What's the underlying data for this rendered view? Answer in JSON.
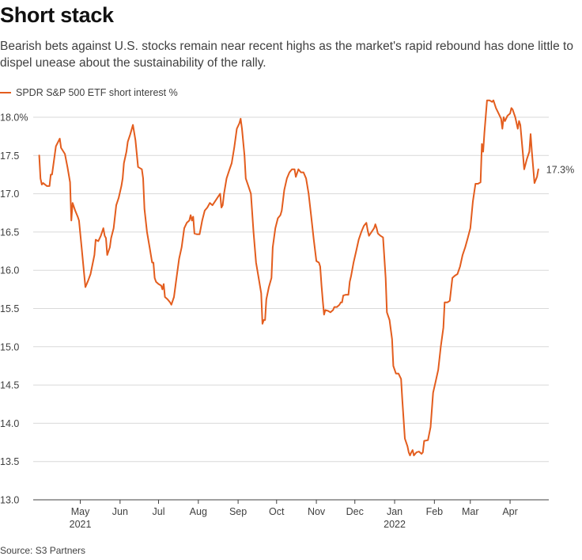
{
  "title": "Short stack",
  "subtitle": "Bearish bets against U.S. stocks remain near recent highs as the market's rapid rebound has done little to dispel unease about the sustainability of the rally.",
  "source": "Source: S3 Partners",
  "colors": {
    "line": "#e35d1e",
    "grid": "#d9d9d9",
    "axis": "#404040",
    "text": "#404040"
  },
  "chart_data": {
    "type": "line",
    "series": [
      {
        "name": "SPDR S&P 500 ETF short interest %",
        "color": "#e35d1e",
        "last_label": "17.3%",
        "points": [
          [
            "2021-03-30",
            17.5
          ],
          [
            "2021-03-31",
            17.2
          ],
          [
            "2021-04-01",
            17.12
          ],
          [
            "2021-04-02",
            17.14
          ],
          [
            "2021-04-05",
            17.1
          ],
          [
            "2021-04-07",
            17.1
          ],
          [
            "2021-04-08",
            17.25
          ],
          [
            "2021-04-09",
            17.25
          ],
          [
            "2021-04-12",
            17.62
          ],
          [
            "2021-04-15",
            17.72
          ],
          [
            "2021-04-16",
            17.6
          ],
          [
            "2021-04-19",
            17.52
          ],
          [
            "2021-04-21",
            17.35
          ],
          [
            "2021-04-23",
            17.15
          ],
          [
            "2021-04-24",
            16.65
          ],
          [
            "2021-04-25",
            16.88
          ],
          [
            "2021-04-27",
            16.78
          ],
          [
            "2021-04-29",
            16.7
          ],
          [
            "2021-04-30",
            16.65
          ],
          [
            "2021-05-02",
            16.3
          ],
          [
            "2021-05-04",
            15.95
          ],
          [
            "2021-05-05",
            15.78
          ],
          [
            "2021-05-07",
            15.86
          ],
          [
            "2021-05-09",
            15.95
          ],
          [
            "2021-05-12",
            16.2
          ],
          [
            "2021-05-13",
            16.4
          ],
          [
            "2021-05-15",
            16.38
          ],
          [
            "2021-05-17",
            16.45
          ],
          [
            "2021-05-19",
            16.55
          ],
          [
            "2021-05-20",
            16.45
          ],
          [
            "2021-05-21",
            16.42
          ],
          [
            "2021-05-22",
            16.2
          ],
          [
            "2021-05-24",
            16.3
          ],
          [
            "2021-05-25",
            16.42
          ],
          [
            "2021-05-27",
            16.55
          ],
          [
            "2021-05-29",
            16.85
          ],
          [
            "2021-05-31",
            16.95
          ],
          [
            "2021-06-02",
            17.1
          ],
          [
            "2021-06-03",
            17.2
          ],
          [
            "2021-06-04",
            17.4
          ],
          [
            "2021-06-06",
            17.55
          ],
          [
            "2021-06-07",
            17.68
          ],
          [
            "2021-06-09",
            17.78
          ],
          [
            "2021-06-11",
            17.9
          ],
          [
            "2021-06-13",
            17.7
          ],
          [
            "2021-06-15",
            17.35
          ],
          [
            "2021-06-18",
            17.32
          ],
          [
            "2021-06-19",
            17.2
          ],
          [
            "2021-06-20",
            16.8
          ],
          [
            "2021-06-22",
            16.5
          ],
          [
            "2021-06-24",
            16.3
          ],
          [
            "2021-06-26",
            16.1
          ],
          [
            "2021-06-27",
            16.1
          ],
          [
            "2021-06-28",
            15.9
          ],
          [
            "2021-06-29",
            15.85
          ],
          [
            "2021-07-01",
            15.82
          ],
          [
            "2021-07-03",
            15.8
          ],
          [
            "2021-07-04",
            15.75
          ],
          [
            "2021-07-05",
            15.82
          ],
          [
            "2021-07-06",
            15.65
          ],
          [
            "2021-07-08",
            15.62
          ],
          [
            "2021-07-10",
            15.58
          ],
          [
            "2021-07-11",
            15.55
          ],
          [
            "2021-07-13",
            15.65
          ],
          [
            "2021-07-15",
            15.9
          ],
          [
            "2021-07-17",
            16.15
          ],
          [
            "2021-07-19",
            16.3
          ],
          [
            "2021-07-21",
            16.55
          ],
          [
            "2021-07-23",
            16.62
          ],
          [
            "2021-07-25",
            16.65
          ],
          [
            "2021-07-26",
            16.72
          ],
          [
            "2021-07-27",
            16.65
          ],
          [
            "2021-07-28",
            16.7
          ],
          [
            "2021-07-29",
            16.48
          ],
          [
            "2021-07-31",
            16.47
          ],
          [
            "2021-08-02",
            16.47
          ],
          [
            "2021-08-04",
            16.65
          ],
          [
            "2021-08-06",
            16.78
          ],
          [
            "2021-08-08",
            16.82
          ],
          [
            "2021-08-10",
            16.88
          ],
          [
            "2021-08-12",
            16.85
          ],
          [
            "2021-08-14",
            16.9
          ],
          [
            "2021-08-16",
            16.95
          ],
          [
            "2021-08-18",
            17.0
          ],
          [
            "2021-08-19",
            16.82
          ],
          [
            "2021-08-20",
            16.85
          ],
          [
            "2021-08-21",
            17.0
          ],
          [
            "2021-08-23",
            17.2
          ],
          [
            "2021-08-25",
            17.3
          ],
          [
            "2021-08-27",
            17.4
          ],
          [
            "2021-08-29",
            17.6
          ],
          [
            "2021-08-31",
            17.85
          ],
          [
            "2021-09-02",
            17.92
          ],
          [
            "2021-09-03",
            17.98
          ],
          [
            "2021-09-04",
            17.85
          ],
          [
            "2021-09-06",
            17.5
          ],
          [
            "2021-09-07",
            17.2
          ],
          [
            "2021-09-09",
            17.1
          ],
          [
            "2021-09-11",
            17.0
          ],
          [
            "2021-09-13",
            16.5
          ],
          [
            "2021-09-15",
            16.1
          ],
          [
            "2021-09-17",
            15.9
          ],
          [
            "2021-09-19",
            15.7
          ],
          [
            "2021-09-20",
            15.3
          ],
          [
            "2021-09-21",
            15.35
          ],
          [
            "2021-09-22",
            15.35
          ],
          [
            "2021-09-23",
            15.62
          ],
          [
            "2021-09-25",
            15.78
          ],
          [
            "2021-09-27",
            15.9
          ],
          [
            "2021-09-28",
            16.3
          ],
          [
            "2021-09-30",
            16.55
          ],
          [
            "2021-10-02",
            16.68
          ],
          [
            "2021-10-04",
            16.72
          ],
          [
            "2021-10-05",
            16.78
          ],
          [
            "2021-10-07",
            17.05
          ],
          [
            "2021-10-09",
            17.2
          ],
          [
            "2021-10-11",
            17.28
          ],
          [
            "2021-10-13",
            17.32
          ],
          [
            "2021-10-15",
            17.32
          ],
          [
            "2021-10-16",
            17.22
          ],
          [
            "2021-10-18",
            17.32
          ],
          [
            "2021-10-20",
            17.28
          ],
          [
            "2021-10-22",
            17.28
          ],
          [
            "2021-10-24",
            17.2
          ],
          [
            "2021-10-26",
            17.0
          ],
          [
            "2021-10-28",
            16.7
          ],
          [
            "2021-10-30",
            16.4
          ],
          [
            "2021-11-01",
            16.12
          ],
          [
            "2021-11-03",
            16.1
          ],
          [
            "2021-11-04",
            16.05
          ],
          [
            "2021-11-05",
            15.8
          ],
          [
            "2021-11-06",
            15.6
          ],
          [
            "2021-11-07",
            15.42
          ],
          [
            "2021-11-08",
            15.48
          ],
          [
            "2021-11-10",
            15.47
          ],
          [
            "2021-11-12",
            15.45
          ],
          [
            "2021-11-14",
            15.48
          ],
          [
            "2021-11-15",
            15.52
          ],
          [
            "2021-11-17",
            15.52
          ],
          [
            "2021-11-19",
            15.55
          ],
          [
            "2021-11-20",
            15.58
          ],
          [
            "2021-11-21",
            15.58
          ],
          [
            "2021-11-22",
            15.67
          ],
          [
            "2021-11-24",
            15.68
          ],
          [
            "2021-11-26",
            15.68
          ],
          [
            "2021-11-27",
            15.85
          ],
          [
            "2021-11-28",
            15.92
          ],
          [
            "2021-11-30",
            16.1
          ],
          [
            "2021-12-02",
            16.25
          ],
          [
            "2021-12-04",
            16.4
          ],
          [
            "2021-12-06",
            16.5
          ],
          [
            "2021-12-08",
            16.58
          ],
          [
            "2021-12-10",
            16.62
          ],
          [
            "2021-12-11",
            16.52
          ],
          [
            "2021-12-12",
            16.45
          ],
          [
            "2021-12-14",
            16.5
          ],
          [
            "2021-12-16",
            16.55
          ],
          [
            "2021-12-17",
            16.6
          ],
          [
            "2021-12-18",
            16.55
          ],
          [
            "2021-12-19",
            16.48
          ],
          [
            "2021-12-21",
            16.45
          ],
          [
            "2021-12-23",
            16.43
          ],
          [
            "2021-12-25",
            15.9
          ],
          [
            "2021-12-26",
            15.45
          ],
          [
            "2021-12-28",
            15.35
          ],
          [
            "2021-12-30",
            15.1
          ],
          [
            "2021-12-31",
            14.75
          ],
          [
            "2022-01-02",
            14.65
          ],
          [
            "2022-01-04",
            14.65
          ],
          [
            "2022-01-06",
            14.58
          ],
          [
            "2022-01-07",
            14.3
          ],
          [
            "2022-01-09",
            13.8
          ],
          [
            "2022-01-11",
            13.7
          ],
          [
            "2022-01-12",
            13.62
          ],
          [
            "2022-01-13",
            13.58
          ],
          [
            "2022-01-14",
            13.62
          ],
          [
            "2022-01-15",
            13.65
          ],
          [
            "2022-01-16",
            13.58
          ],
          [
            "2022-01-18",
            13.62
          ],
          [
            "2022-01-20",
            13.63
          ],
          [
            "2022-01-22",
            13.6
          ],
          [
            "2022-01-23",
            13.62
          ],
          [
            "2022-01-24",
            13.77
          ],
          [
            "2022-01-27",
            13.78
          ],
          [
            "2022-01-29",
            13.95
          ],
          [
            "2022-01-31",
            14.4
          ],
          [
            "2022-02-02",
            14.55
          ],
          [
            "2022-02-04",
            14.7
          ],
          [
            "2022-02-06",
            15.0
          ],
          [
            "2022-02-08",
            15.25
          ],
          [
            "2022-02-09",
            15.58
          ],
          [
            "2022-02-11",
            15.58
          ],
          [
            "2022-02-13",
            15.6
          ],
          [
            "2022-02-15",
            15.9
          ],
          [
            "2022-02-17",
            15.93
          ],
          [
            "2022-02-19",
            15.95
          ],
          [
            "2022-02-21",
            16.05
          ],
          [
            "2022-02-23",
            16.2
          ],
          [
            "2022-02-25",
            16.3
          ],
          [
            "2022-02-27",
            16.42
          ],
          [
            "2022-03-01",
            16.55
          ],
          [
            "2022-03-03",
            16.9
          ],
          [
            "2022-03-05",
            17.13
          ],
          [
            "2022-03-07",
            17.13
          ],
          [
            "2022-03-09",
            17.15
          ],
          [
            "2022-03-10",
            17.65
          ],
          [
            "2022-03-11",
            17.55
          ],
          [
            "2022-03-12",
            17.8
          ],
          [
            "2022-03-14",
            18.22
          ],
          [
            "2022-03-16",
            18.22
          ],
          [
            "2022-03-18",
            18.2
          ],
          [
            "2022-03-19",
            18.22
          ],
          [
            "2022-03-21",
            18.12
          ],
          [
            "2022-03-23",
            18.05
          ],
          [
            "2022-03-25",
            17.98
          ],
          [
            "2022-03-26",
            17.85
          ],
          [
            "2022-03-27",
            18.0
          ],
          [
            "2022-03-28",
            17.95
          ],
          [
            "2022-03-30",
            18.02
          ],
          [
            "2022-04-01",
            18.05
          ],
          [
            "2022-04-02",
            18.12
          ],
          [
            "2022-04-03",
            18.1
          ],
          [
            "2022-04-05",
            18.0
          ],
          [
            "2022-04-07",
            17.85
          ],
          [
            "2022-04-08",
            17.95
          ],
          [
            "2022-04-09",
            17.9
          ],
          [
            "2022-04-11",
            17.52
          ],
          [
            "2022-04-12",
            17.32
          ],
          [
            "2022-04-14",
            17.45
          ],
          [
            "2022-04-16",
            17.55
          ],
          [
            "2022-04-17",
            17.78
          ],
          [
            "2022-04-18",
            17.55
          ],
          [
            "2022-04-20",
            17.14
          ],
          [
            "2022-04-22",
            17.22
          ],
          [
            "2022-04-23",
            17.32
          ]
        ]
      }
    ],
    "x_range": [
      "2021-03-29",
      "2022-04-25"
    ],
    "x_ticks": [
      {
        "date": "2021-05-01",
        "label": "May",
        "sublabel": "2021"
      },
      {
        "date": "2021-06-01",
        "label": "Jun",
        "sublabel": ""
      },
      {
        "date": "2021-07-01",
        "label": "Jul",
        "sublabel": ""
      },
      {
        "date": "2021-08-01",
        "label": "Aug",
        "sublabel": ""
      },
      {
        "date": "2021-09-01",
        "label": "Sep",
        "sublabel": ""
      },
      {
        "date": "2021-10-01",
        "label": "Oct",
        "sublabel": ""
      },
      {
        "date": "2021-11-01",
        "label": "Nov",
        "sublabel": ""
      },
      {
        "date": "2021-12-01",
        "label": "Dec",
        "sublabel": ""
      },
      {
        "date": "2022-01-01",
        "label": "Jan",
        "sublabel": "2022"
      },
      {
        "date": "2022-02-01",
        "label": "Feb",
        "sublabel": ""
      },
      {
        "date": "2022-03-01",
        "label": "Mar",
        "sublabel": ""
      },
      {
        "date": "2022-04-01",
        "label": "Apr",
        "sublabel": ""
      }
    ],
    "ylim": [
      13.0,
      18.0
    ],
    "y_ticks": [
      {
        "value": 18.0,
        "label": "18.0%"
      },
      {
        "value": 17.5,
        "label": "17.5"
      },
      {
        "value": 17.0,
        "label": "17.0"
      },
      {
        "value": 16.5,
        "label": "16.5"
      },
      {
        "value": 16.0,
        "label": "16.0"
      },
      {
        "value": 15.5,
        "label": "15.5"
      },
      {
        "value": 15.0,
        "label": "15.0"
      },
      {
        "value": 14.5,
        "label": "14.5"
      },
      {
        "value": 14.0,
        "label": "14.0"
      },
      {
        "value": 13.5,
        "label": "13.5"
      },
      {
        "value": 13.0,
        "label": "13.0"
      }
    ],
    "grid": true,
    "legend_position": "top-left"
  }
}
